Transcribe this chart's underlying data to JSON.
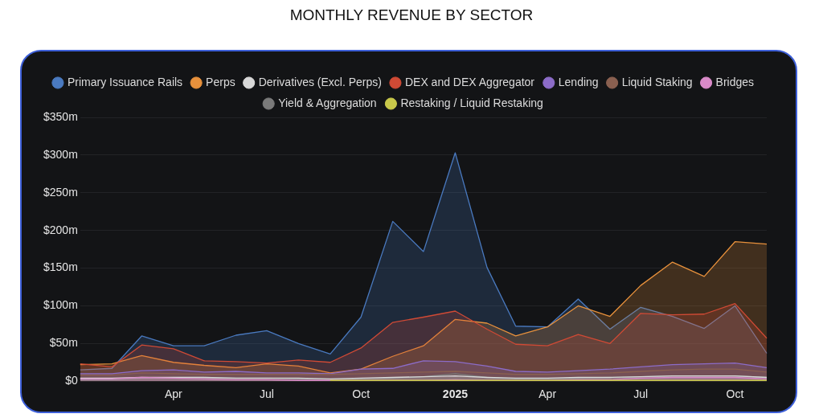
{
  "chart_data": {
    "type": "area",
    "title": "MONTHLY REVENUE BY SECTOR",
    "x": [
      "2024-01",
      "2024-02",
      "2024-03",
      "2024-04",
      "2024-05",
      "2024-06",
      "2024-07",
      "2024-08",
      "2024-09",
      "2024-10",
      "2024-11",
      "2024-12",
      "2025-01",
      "2025-02",
      "2025-03",
      "2025-04",
      "2025-05",
      "2025-06",
      "2025-07",
      "2025-08",
      "2025-09",
      "2025-10",
      "2025-11"
    ],
    "series": [
      {
        "name": "Primary Issuance Rails",
        "color": "#4a7ac0",
        "values": [
          15,
          17,
          60,
          47,
          47,
          61,
          67,
          50,
          36,
          85,
          212,
          172,
          303,
          151,
          73,
          72,
          109,
          69,
          98,
          86,
          70,
          100,
          37
        ]
      },
      {
        "name": "Perps",
        "color": "#e8913c",
        "values": [
          22,
          23,
          34,
          25,
          21,
          18,
          23,
          20,
          11,
          16,
          33,
          47,
          82,
          77,
          60,
          72,
          100,
          86,
          127,
          158,
          139,
          185,
          182
        ]
      },
      {
        "name": "Derivatives (Excl. Perps)",
        "color": "#d8d8d8",
        "values": [
          4,
          4,
          5,
          5,
          5,
          4,
          4,
          4,
          3,
          4,
          5,
          6,
          7,
          5,
          4,
          4,
          5,
          5,
          6,
          7,
          7,
          7,
          5
        ]
      },
      {
        "name": "DEX and DEX Aggregator",
        "color": "#d04a35",
        "values": [
          23,
          19,
          48,
          43,
          27,
          26,
          24,
          28,
          25,
          44,
          78,
          85,
          93,
          69,
          49,
          47,
          62,
          50,
          90,
          88,
          89,
          103,
          57
        ]
      },
      {
        "name": "Lending",
        "color": "#8c6cc8",
        "values": [
          10,
          10,
          14,
          15,
          12,
          13,
          11,
          11,
          10,
          16,
          17,
          27,
          26,
          20,
          13,
          12,
          14,
          16,
          19,
          22,
          23,
          24,
          18
        ]
      },
      {
        "name": "Liquid Staking",
        "color": "#8a6050",
        "values": [
          8,
          8,
          11,
          10,
          9,
          9,
          9,
          9,
          9,
          10,
          11,
          12,
          13,
          11,
          9,
          9,
          10,
          11,
          13,
          15,
          16,
          16,
          12
        ]
      },
      {
        "name": "Bridges",
        "color": "#d98ac8",
        "values": [
          3,
          3,
          5,
          4,
          3,
          2,
          2,
          1,
          1,
          1,
          1,
          1,
          2,
          1,
          1,
          1,
          2,
          2,
          4,
          5,
          5,
          5,
          3
        ]
      },
      {
        "name": "Yield & Aggregation",
        "color": "#7a7a7a",
        "values": [
          2,
          2,
          4,
          5,
          5,
          4,
          4,
          3,
          3,
          3,
          4,
          6,
          10,
          5,
          3,
          3,
          4,
          5,
          6,
          7,
          7,
          7,
          5
        ]
      },
      {
        "name": "Restaking / Liquid Restaking",
        "color": "#c8c84a",
        "values": [
          null,
          null,
          null,
          null,
          null,
          null,
          null,
          null,
          1,
          1,
          1,
          1,
          1,
          1,
          1,
          1,
          1,
          1,
          1,
          1,
          1,
          1,
          1
        ]
      }
    ],
    "xlim": [
      "2024-01",
      "2025-11"
    ],
    "xticks": [
      {
        "value": "2024-04",
        "label": "Apr"
      },
      {
        "value": "2024-07",
        "label": "Jul"
      },
      {
        "value": "2024-10",
        "label": "Oct"
      },
      {
        "value": "2025-01",
        "label": "2025"
      },
      {
        "value": "2025-04",
        "label": "Apr"
      },
      {
        "value": "2025-07",
        "label": "Jul"
      },
      {
        "value": "2025-10",
        "label": "Oct"
      }
    ],
    "ylim": [
      0,
      350
    ],
    "yticks": [
      {
        "value": 0,
        "label": "$0"
      },
      {
        "value": 50,
        "label": "$50m"
      },
      {
        "value": 100,
        "label": "$100m"
      },
      {
        "value": 150,
        "label": "$150m"
      },
      {
        "value": 200,
        "label": "$200m"
      },
      {
        "value": 250,
        "label": "$250m"
      },
      {
        "value": 300,
        "label": "$300m"
      },
      {
        "value": 350,
        "label": "$350m"
      }
    ],
    "grid": "y",
    "legend": "top",
    "marker": "none",
    "line_style": "solid"
  }
}
